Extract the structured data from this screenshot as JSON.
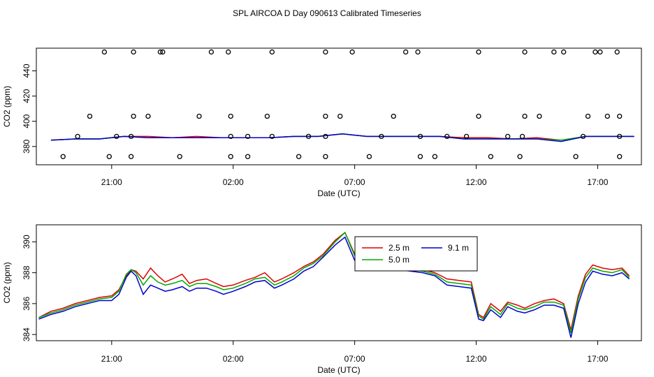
{
  "title": "SPL AIRCOA D  Day 090613  Calibrated Timeseries",
  "chart_data": [
    {
      "type": "line",
      "xlabel": "Date (UTC)",
      "ylabel": "CO2 (ppm)",
      "xlim": [
        18.5,
        19.9
      ],
      "ylim": [
        365.5,
        458
      ],
      "x_ticks": [
        {
          "value": 21,
          "label": "21:00"
        },
        {
          "value": 26,
          "label": "02:00"
        },
        {
          "value": 31,
          "label": "07:00"
        },
        {
          "value": 36,
          "label": "12:00"
        },
        {
          "value": 41,
          "label": "17:00"
        }
      ],
      "y_ticks": [
        {
          "value": 380,
          "label": "380"
        },
        {
          "value": 400,
          "label": "400"
        },
        {
          "value": 420,
          "label": "420"
        },
        {
          "value": 440,
          "label": "440"
        }
      ],
      "series": [
        {
          "color": "#dd0000",
          "x": [
            18.5,
            19.5,
            20.5,
            21.5,
            22.5,
            23.5,
            24.5,
            25.5,
            26.5,
            27.5,
            28.5,
            29.5,
            30.5,
            31.5,
            32.5,
            33.5,
            34.5,
            35.5,
            36.5,
            37.5,
            38.5,
            39.5,
            40.5,
            41.5,
            42.5
          ],
          "values": [
            385,
            386,
            386,
            388,
            388,
            387,
            388,
            387,
            387,
            387,
            388,
            388,
            390,
            388,
            388,
            388,
            388,
            387,
            387,
            386,
            387,
            385,
            388,
            388,
            388
          ]
        },
        {
          "color": "#00bb00",
          "x": [
            18.5,
            19.5,
            20.5,
            21.5,
            22.5,
            23.5,
            24.5,
            25.5,
            26.5,
            27.5,
            28.5,
            29.5,
            30.5,
            31.5,
            32.5,
            33.5,
            34.5,
            35.5,
            36.5,
            37.5,
            38.5,
            39.5,
            40.5,
            41.5,
            42.5
          ],
          "values": [
            385,
            386,
            386,
            388,
            387,
            387,
            387,
            387,
            387,
            387,
            388,
            388,
            390,
            388,
            388,
            388,
            388,
            386,
            386,
            386,
            386,
            385,
            388,
            388,
            388
          ]
        },
        {
          "color": "#0000cc",
          "x": [
            18.5,
            19.5,
            20.5,
            21.5,
            22.5,
            23.5,
            24.5,
            25.5,
            26.5,
            27.5,
            28.5,
            29.5,
            30.5,
            31.5,
            32.5,
            33.5,
            34.5,
            35.5,
            36.5,
            37.5,
            38.5,
            39.5,
            40.5,
            41.5,
            42.5
          ],
          "values": [
            385,
            386,
            386,
            388,
            387,
            387,
            387,
            387,
            387,
            387,
            388,
            388,
            390,
            388,
            388,
            388,
            388,
            386,
            386,
            386,
            386,
            384,
            388,
            388,
            388
          ]
        }
      ],
      "points": {
        "x": [
          19.0,
          19.6,
          20.1,
          20.7,
          20.9,
          21.2,
          21.8,
          21.8,
          21.9,
          21.9,
          22.5,
          23.0,
          23.1,
          23.8,
          24.6,
          25.1,
          25.8,
          25.9,
          25.9,
          25.9,
          26.6,
          26.6,
          27.4,
          27.6,
          27.6,
          28.7,
          29.1,
          29.8,
          29.8,
          29.8,
          29.8,
          30.4,
          30.9,
          31.6,
          32.1,
          32.6,
          33.1,
          33.6,
          33.7,
          33.7,
          34.3,
          34.8,
          35.6,
          36.1,
          36.1,
          36.6,
          37.3,
          37.8,
          37.9,
          38.0,
          38.0,
          38.6,
          39.2,
          39.6,
          40.1,
          40.4,
          40.6,
          40.9,
          41.1,
          41.4,
          41.8,
          41.9,
          41.9,
          41.9
        ]
      },
      "points_y": [
        372,
        388,
        404,
        455,
        372,
        388,
        372,
        388,
        404,
        455,
        404,
        455,
        455,
        372,
        404,
        455,
        455,
        388,
        372,
        404,
        372,
        388,
        404,
        455,
        388,
        372,
        388,
        372,
        388,
        404,
        455,
        404,
        455,
        372,
        388,
        404,
        455,
        455,
        388,
        372,
        372,
        388,
        388,
        404,
        455,
        372,
        388,
        372,
        388,
        404,
        455,
        404,
        455,
        455,
        372,
        388,
        404,
        455,
        455,
        404,
        455,
        388,
        372,
        404
      ]
    },
    {
      "type": "line",
      "xlabel": "Date (UTC)",
      "ylabel": "CO2 (ppm)",
      "ylim": [
        383.6,
        391.1
      ],
      "x_ticks": [
        {
          "value": 21,
          "label": "21:00"
        },
        {
          "value": 26,
          "label": "02:00"
        },
        {
          "value": 31,
          "label": "07:00"
        },
        {
          "value": 36,
          "label": "12:00"
        },
        {
          "value": 41,
          "label": "17:00"
        }
      ],
      "y_ticks": [
        {
          "value": 384,
          "label": "384"
        },
        {
          "value": 386,
          "label": "386"
        },
        {
          "value": 388,
          "label": "388"
        },
        {
          "value": 390,
          "label": "390"
        }
      ],
      "legend_position": "top-center",
      "series": [
        {
          "name": "2.5 m",
          "color": "#dd0000",
          "x": [
            18.0,
            18.5,
            19.0,
            19.5,
            20.0,
            20.5,
            21.0,
            21.3,
            21.6,
            21.8,
            22.0,
            22.3,
            22.6,
            22.9,
            23.2,
            23.5,
            23.9,
            24.2,
            24.5,
            24.9,
            25.3,
            25.6,
            26.0,
            26.5,
            26.9,
            27.3,
            27.7,
            28.0,
            28.5,
            28.9,
            29.3,
            29.7,
            30.2,
            30.6,
            31.0,
            31.4,
            31.8,
            32.3,
            32.8,
            33.3,
            33.8,
            34.3,
            34.8,
            35.3,
            35.8,
            36.1,
            36.3,
            36.6,
            37.0,
            37.3,
            37.7,
            38.0,
            38.4,
            38.8,
            39.2,
            39.6,
            39.9,
            40.2,
            40.5,
            40.8,
            41.2,
            41.6,
            42.0,
            42.3
          ],
          "values": [
            385.1,
            385.5,
            385.7,
            386.0,
            386.2,
            386.4,
            386.5,
            386.9,
            387.8,
            388.2,
            388.1,
            387.6,
            388.3,
            387.8,
            387.4,
            387.6,
            387.9,
            387.3,
            387.5,
            387.6,
            387.3,
            387.1,
            387.2,
            387.5,
            387.7,
            388.0,
            387.4,
            387.6,
            388.0,
            388.4,
            388.7,
            389.2,
            390.1,
            390.6,
            389.2,
            389.0,
            388.7,
            388.5,
            388.4,
            388.3,
            388.2,
            388.0,
            387.6,
            387.5,
            387.4,
            385.3,
            385.1,
            386.0,
            385.5,
            386.1,
            385.9,
            385.7,
            386.0,
            386.2,
            386.3,
            386.0,
            384.3,
            386.5,
            387.9,
            388.5,
            388.3,
            388.2,
            388.3,
            387.8
          ]
        },
        {
          "name": "5.0 m",
          "color": "#00aa00",
          "x": [
            18.0,
            18.5,
            19.0,
            19.5,
            20.0,
            20.5,
            21.0,
            21.3,
            21.6,
            21.8,
            22.0,
            22.3,
            22.6,
            22.9,
            23.2,
            23.5,
            23.9,
            24.2,
            24.5,
            24.9,
            25.3,
            25.6,
            26.0,
            26.5,
            26.9,
            27.3,
            27.7,
            28.0,
            28.5,
            28.9,
            29.3,
            29.7,
            30.2,
            30.6,
            31.0,
            31.4,
            31.8,
            32.3,
            32.8,
            33.3,
            33.8,
            34.3,
            34.8,
            35.3,
            35.8,
            36.1,
            36.3,
            36.6,
            37.0,
            37.3,
            37.7,
            38.0,
            38.4,
            38.8,
            39.2,
            39.6,
            39.9,
            40.2,
            40.5,
            40.8,
            41.2,
            41.6,
            42.0,
            42.3
          ],
          "values": [
            385.1,
            385.4,
            385.6,
            385.9,
            386.1,
            386.3,
            386.4,
            386.8,
            387.9,
            388.2,
            388.0,
            387.2,
            387.8,
            387.4,
            387.2,
            387.3,
            387.5,
            387.1,
            387.3,
            387.3,
            387.1,
            386.9,
            387.0,
            387.3,
            387.6,
            387.7,
            387.2,
            387.4,
            387.8,
            388.3,
            388.6,
            389.1,
            390.0,
            390.6,
            389.1,
            388.9,
            388.6,
            388.4,
            388.3,
            388.2,
            388.1,
            387.9,
            387.4,
            387.3,
            387.2,
            385.2,
            385.0,
            385.8,
            385.3,
            386.0,
            385.7,
            385.6,
            385.8,
            386.1,
            386.1,
            385.9,
            384.1,
            386.3,
            387.7,
            388.3,
            388.1,
            388.0,
            388.2,
            387.7
          ]
        },
        {
          "name": "9.1 m",
          "color": "#0000cc",
          "x": [
            18.0,
            18.5,
            19.0,
            19.5,
            20.0,
            20.5,
            21.0,
            21.3,
            21.6,
            21.8,
            22.0,
            22.3,
            22.6,
            22.9,
            23.2,
            23.5,
            23.9,
            24.2,
            24.5,
            24.9,
            25.3,
            25.6,
            26.0,
            26.5,
            26.9,
            27.3,
            27.7,
            28.0,
            28.5,
            28.9,
            29.3,
            29.7,
            30.2,
            30.6,
            31.0,
            31.4,
            31.8,
            32.3,
            32.8,
            33.3,
            33.8,
            34.3,
            34.8,
            35.3,
            35.8,
            36.1,
            36.3,
            36.6,
            37.0,
            37.3,
            37.7,
            38.0,
            38.4,
            38.8,
            39.2,
            39.6,
            39.9,
            40.2,
            40.5,
            40.8,
            41.2,
            41.6,
            42.0,
            42.3
          ],
          "values": [
            385.0,
            385.3,
            385.5,
            385.8,
            386.0,
            386.2,
            386.2,
            386.6,
            387.7,
            388.1,
            387.8,
            386.6,
            387.2,
            387.0,
            386.8,
            386.9,
            387.1,
            386.8,
            387.0,
            387.0,
            386.8,
            386.6,
            386.8,
            387.1,
            387.4,
            387.5,
            387.0,
            387.2,
            387.6,
            388.1,
            388.4,
            389.0,
            389.8,
            390.3,
            388.8,
            388.7,
            388.5,
            388.3,
            388.2,
            388.1,
            388.0,
            387.8,
            387.2,
            387.1,
            387.0,
            385.0,
            384.9,
            385.6,
            385.1,
            385.8,
            385.5,
            385.4,
            385.6,
            385.9,
            385.9,
            385.7,
            383.8,
            386.0,
            387.4,
            388.1,
            387.9,
            387.8,
            388.0,
            387.6
          ]
        }
      ]
    }
  ]
}
